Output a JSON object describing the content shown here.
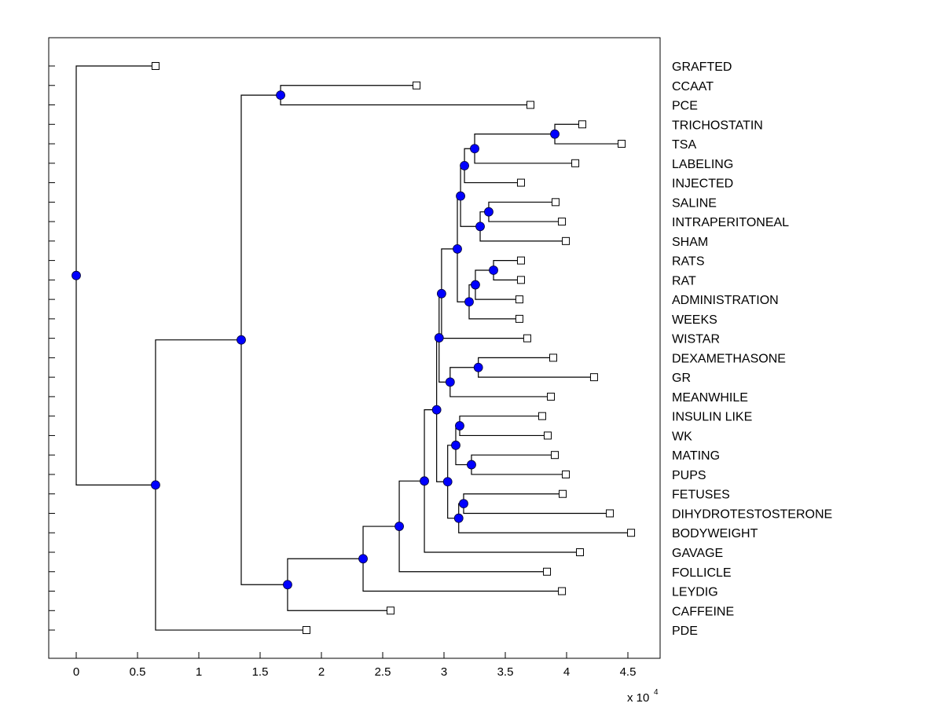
{
  "chart_data": {
    "type": "dendrogram",
    "xlabel_multiplier": "x 10",
    "xlabel_exponent": "4",
    "xlim": [
      -0.224,
      4.76
    ],
    "xticks": [
      "0",
      "0.5",
      "1",
      "1.5",
      "2",
      "2.5",
      "3",
      "3.5",
      "4",
      "4.5"
    ],
    "xtick_values": [
      0,
      0.5,
      1,
      1.5,
      2,
      2.5,
      3,
      3.5,
      4,
      4.5
    ],
    "colors": {
      "node": "#0000ff",
      "leaf": "#ffffff",
      "line": "#000000"
    },
    "leaves": [
      {
        "label": "GRAFTED",
        "x": 0.647
      },
      {
        "label": "CCAAT",
        "x": 2.776
      },
      {
        "label": "PCE",
        "x": 3.705
      },
      {
        "label": "TRICHOSTATIN",
        "x": 4.128
      },
      {
        "label": "TSA",
        "x": 4.449
      },
      {
        "label": "LABELING",
        "x": 4.071
      },
      {
        "label": "INJECTED",
        "x": 3.628
      },
      {
        "label": "SALINE",
        "x": 3.91
      },
      {
        "label": "INTRAPERITONEAL",
        "x": 3.962
      },
      {
        "label": "SHAM",
        "x": 3.994
      },
      {
        "label": "RATS",
        "x": 3.628
      },
      {
        "label": "RAT",
        "x": 3.628
      },
      {
        "label": "ADMINISTRATION",
        "x": 3.615
      },
      {
        "label": "WEEKS",
        "x": 3.615
      },
      {
        "label": "WISTAR",
        "x": 3.679
      },
      {
        "label": "DEXAMETHASONE",
        "x": 3.891
      },
      {
        "label": "GR",
        "x": 4.224
      },
      {
        "label": "MEANWHILE",
        "x": 3.872
      },
      {
        "label": "INSULIN LIKE",
        "x": 3.801
      },
      {
        "label": "WK",
        "x": 3.846
      },
      {
        "label": "MATING",
        "x": 3.904
      },
      {
        "label": "PUPS",
        "x": 3.994
      },
      {
        "label": "FETUSES",
        "x": 3.968
      },
      {
        "label": "DIHYDROTESTOSTERONE",
        "x": 4.353
      },
      {
        "label": "BODYWEIGHT",
        "x": 4.526
      },
      {
        "label": "GAVAGE",
        "x": 4.109
      },
      {
        "label": "FOLLICLE",
        "x": 3.84
      },
      {
        "label": "LEYDIG",
        "x": 3.962
      },
      {
        "label": "CAFFEINE",
        "x": 2.564
      },
      {
        "label": "PDE",
        "x": 1.878
      }
    ],
    "tree": {
      "x": 0,
      "children": [
        {
          "leaf": 0
        },
        {
          "x": 0.647,
          "children": [
            {
              "x": 1.346,
              "children": [
                {
                  "x": 1.667,
                  "children": [
                    {
                      "leaf": 1
                    },
                    {
                      "leaf": 2
                    }
                  ]
                },
                {
                  "x": 1.724,
                  "children": [
                    {
                      "x": 2.34,
                      "children": [
                        {
                          "x": 2.635,
                          "children": [
                            {
                              "x": 2.84,
                              "children": [
                                {
                                  "x": 2.94,
                                  "children": [
                                    {
                                      "x": 2.96,
                                      "children": [
                                        {
                                          "x": 2.98,
                                          "children": [
                                            {
                                              "x": 3.109,
                                              "children": [
                                                {
                                                  "x": 3.135,
                                                  "children": [
                                                    {
                                                      "x": 3.167,
                                                      "children": [
                                                        {
                                                          "x": 3.25,
                                                          "children": [
                                                            {
                                                              "x": 3.904,
                                                              "children": [
                                                                {
                                                                  "leaf": 3
                                                                },
                                                                {
                                                                  "leaf": 4
                                                                }
                                                              ]
                                                            },
                                                            {
                                                              "leaf": 5
                                                            }
                                                          ]
                                                        },
                                                        {
                                                          "leaf": 6
                                                        }
                                                      ]
                                                    },
                                                    {
                                                      "x": 3.295,
                                                      "children": [
                                                        {
                                                          "x": 3.365,
                                                          "children": [
                                                            {
                                                              "leaf": 7
                                                            },
                                                            {
                                                              "leaf": 8
                                                            }
                                                          ]
                                                        },
                                                        {
                                                          "leaf": 9
                                                        }
                                                      ]
                                                    }
                                                  ]
                                                },
                                                {
                                                  "x": 3.205,
                                                  "children": [
                                                    {
                                                      "x": 3.256,
                                                      "children": [
                                                        {
                                                          "x": 3.404,
                                                          "children": [
                                                            {
                                                              "leaf": 10
                                                            },
                                                            {
                                                              "leaf": 11
                                                            }
                                                          ]
                                                        },
                                                        {
                                                          "leaf": 12
                                                        }
                                                      ]
                                                    },
                                                    {
                                                      "leaf": 13
                                                    }
                                                  ]
                                                }
                                              ]
                                            },
                                            {
                                              "leaf": 14
                                            }
                                          ]
                                        },
                                        {
                                          "x": 3.05,
                                          "children": [
                                            {
                                              "x": 3.28,
                                              "children": [
                                                {
                                                  "leaf": 15
                                                },
                                                {
                                                  "leaf": 16
                                                }
                                              ]
                                            },
                                            {
                                              "leaf": 17
                                            }
                                          ]
                                        }
                                      ]
                                    },
                                    {
                                      "x": 3.03,
                                      "children": [
                                        {
                                          "x": 3.096,
                                          "children": [
                                            {
                                              "x": 3.128,
                                              "children": [
                                                {
                                                  "leaf": 18
                                                },
                                                {
                                                  "leaf": 19
                                                }
                                              ]
                                            },
                                            {
                                              "x": 3.224,
                                              "children": [
                                                {
                                                  "leaf": 20
                                                },
                                                {
                                                  "leaf": 21
                                                }
                                              ]
                                            }
                                          ]
                                        },
                                        {
                                          "x": 3.12,
                                          "children": [
                                            {
                                              "x": 3.16,
                                              "children": [
                                                {
                                                  "leaf": 22
                                                },
                                                {
                                                  "leaf": 23
                                                }
                                              ]
                                            },
                                            {
                                              "leaf": 24
                                            }
                                          ]
                                        }
                                      ]
                                    }
                                  ]
                                },
                                {
                                  "leaf": 25
                                }
                              ]
                            },
                            {
                              "leaf": 26
                            }
                          ]
                        },
                        {
                          "leaf": 27
                        }
                      ]
                    },
                    {
                      "leaf": 28
                    }
                  ]
                }
              ]
            },
            {
              "leaf": 29
            }
          ]
        }
      ]
    }
  }
}
